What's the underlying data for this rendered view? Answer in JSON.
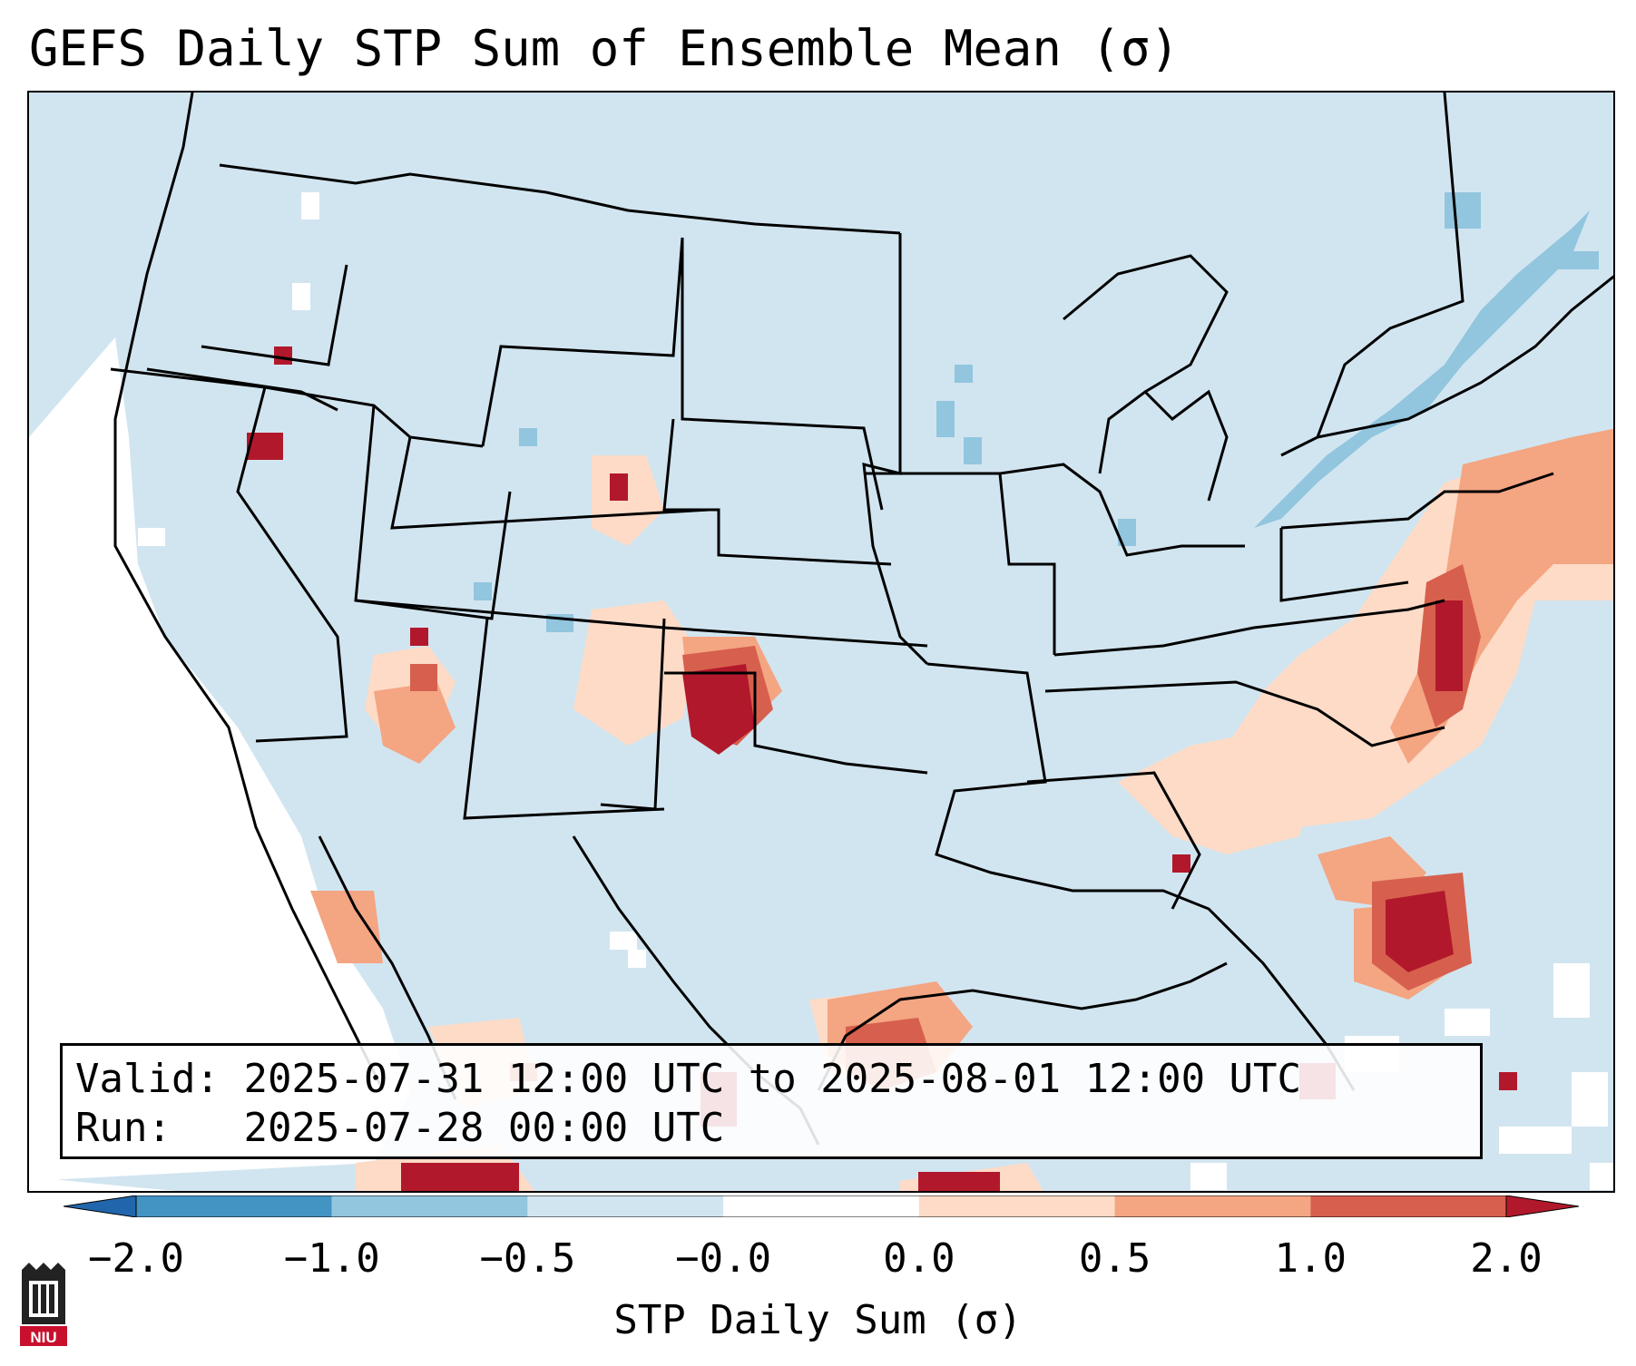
{
  "title": "GEFS Daily STP Sum of Ensemble Mean (σ)",
  "info": {
    "valid_label": "Valid:",
    "valid_text": "2025-07-31 12:00 UTC to 2025-08-01 12:00 UTC",
    "run_label": "Run:",
    "run_text": "2025-07-28 00:00 UTC"
  },
  "colorbar": {
    "label": "STP Daily Sum (σ)",
    "tick_labels": [
      "−2.0",
      "−1.0",
      "−0.5",
      "−0.0",
      "0.0",
      "0.5",
      "1.0",
      "2.0"
    ],
    "bins": [
      {
        "from": "-2.0",
        "to": "-1.0",
        "color": "#4393c3"
      },
      {
        "from": "-1.0",
        "to": "-0.5",
        "color": "#92c5de"
      },
      {
        "from": "-0.5",
        "to": "-0.0",
        "color": "#d1e5f0"
      },
      {
        "from": "-0.0",
        "to": "0.0",
        "color": "#ffffff"
      },
      {
        "from": "0.0",
        "to": "0.5",
        "color": "#fddbc7"
      },
      {
        "from": "0.5",
        "to": "1.0",
        "color": "#f4a582"
      },
      {
        "from": "1.0",
        "to": "2.0",
        "color": "#d6604d"
      }
    ],
    "extend_low_color": "#2166ac",
    "extend_high_color": "#b2182b"
  },
  "map": {
    "projection": "Lambert conformal, CONUS",
    "background_color": "#d1e5f0",
    "hotspots": [
      {
        "region": "Colorado-Kansas-Oklahoma panhandle",
        "level": "2.0"
      },
      {
        "region": "Atlantic off Carolinas/Georgia",
        "level": "2.0"
      },
      {
        "region": "Mid-Atlantic coast",
        "level": "1.0"
      },
      {
        "region": "Texas Gulf coast",
        "level": "2.0"
      },
      {
        "region": "South Florida",
        "level": "2.0"
      },
      {
        "region": "Southern Idaho",
        "level": "2.0"
      }
    ],
    "negative_regions": [
      {
        "region": "St. Lawrence Valley / New England north",
        "level": "-0.5"
      }
    ]
  },
  "logo": {
    "text": "NIU",
    "icon": "niu-logo-icon"
  }
}
